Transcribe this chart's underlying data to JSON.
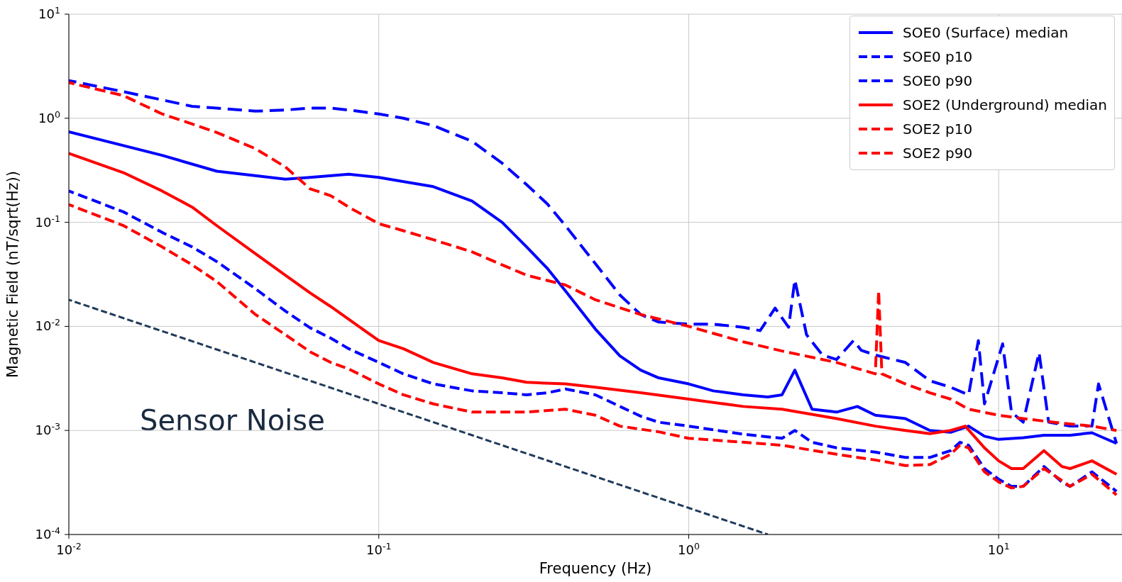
{
  "chart_data": {
    "type": "line",
    "xlabel": "Frequency (Hz)",
    "ylabel": "Magnetic Field (nT/sqrt(Hz))",
    "log": "xy",
    "grid": true,
    "legend": "top right",
    "marker": "none",
    "xlim": [
      0.01,
      25
    ],
    "ylim": [
      0.0001,
      10
    ],
    "xticks": [
      {
        "value": 0.01,
        "label": "10$^{-2}$"
      },
      {
        "value": 0.1,
        "label": "10$^{-1}$"
      },
      {
        "value": 1,
        "label": "10$^{0}$"
      },
      {
        "value": 10,
        "label": "10$^{1}$"
      }
    ],
    "yticks": [
      {
        "value": 0.0001,
        "label": "10$^{-4}$"
      },
      {
        "value": 0.001,
        "label": "10$^{-3}$"
      },
      {
        "value": 0.01,
        "label": "10$^{-2}$"
      },
      {
        "value": 0.1,
        "label": "10$^{-1}$"
      },
      {
        "value": 1,
        "label": "10$^{0}$"
      },
      {
        "value": 10,
        "label": "10$^{1}$"
      }
    ],
    "annotations": [
      "Sensor Noise"
    ],
    "series": [
      {
        "name": "SOE0 (Surface) median",
        "color": "#0000ff",
        "line_style": "solid",
        "x": [
          0.01,
          0.02,
          0.03,
          0.05,
          0.06,
          0.08,
          0.1,
          0.15,
          0.2,
          0.25,
          0.3,
          0.35,
          0.4,
          0.5,
          0.6,
          0.7,
          0.8,
          1,
          1.2,
          1.5,
          1.8,
          2,
          2.2,
          2.5,
          3,
          3.5,
          4,
          5,
          6,
          7,
          8,
          9,
          10,
          12,
          14,
          17,
          20,
          24
        ],
        "values": [
          0.74,
          0.44,
          0.31,
          0.26,
          0.27,
          0.29,
          0.27,
          0.22,
          0.16,
          0.1,
          0.058,
          0.036,
          0.022,
          0.0094,
          0.0052,
          0.0038,
          0.0032,
          0.0028,
          0.0024,
          0.0022,
          0.0021,
          0.0022,
          0.0038,
          0.0016,
          0.0015,
          0.0017,
          0.0014,
          0.0013,
          0.001,
          0.00096,
          0.0011,
          0.00088,
          0.00082,
          0.00085,
          0.0009,
          0.0009,
          0.00095,
          0.00075
        ]
      },
      {
        "name": "SOE0 p10",
        "color": "#0000ff",
        "line_style": "dashed",
        "x": [
          0.01,
          0.015,
          0.02,
          0.025,
          0.03,
          0.04,
          0.05,
          0.06,
          0.07,
          0.08,
          0.1,
          0.12,
          0.15,
          0.2,
          0.25,
          0.3,
          0.35,
          0.4,
          0.5,
          0.6,
          0.7,
          0.8,
          1,
          1.5,
          2,
          2.2,
          2.5,
          3,
          4,
          5,
          6,
          7,
          7.5,
          8,
          9,
          10,
          11,
          12,
          14,
          16,
          17,
          20,
          24
        ],
        "values": [
          0.2,
          0.126,
          0.08,
          0.058,
          0.042,
          0.023,
          0.014,
          0.0097,
          0.0077,
          0.0061,
          0.0045,
          0.0035,
          0.0028,
          0.0024,
          0.0023,
          0.0022,
          0.0023,
          0.0025,
          0.0022,
          0.0017,
          0.00137,
          0.0012,
          0.0011,
          0.00092,
          0.00084,
          0.001,
          0.00077,
          0.00068,
          0.00062,
          0.00055,
          0.00055,
          0.00064,
          0.00077,
          0.00072,
          0.00043,
          0.00034,
          0.00029,
          0.00029,
          0.00045,
          0.00032,
          0.00029,
          0.0004,
          0.00026
        ]
      },
      {
        "name": "SOE0 p90",
        "color": "#0000ff",
        "line_style": "dashed",
        "x": [
          0.01,
          0.015,
          0.02,
          0.025,
          0.03,
          0.04,
          0.05,
          0.06,
          0.07,
          0.08,
          0.1,
          0.12,
          0.15,
          0.2,
          0.25,
          0.3,
          0.35,
          0.4,
          0.5,
          0.6,
          0.7,
          0.8,
          1,
          1.2,
          1.5,
          1.7,
          1.9,
          2.1,
          2.2,
          2.4,
          2.7,
          3,
          3.4,
          3.6,
          4,
          5,
          6,
          7,
          8,
          8.6,
          9,
          10.3,
          11,
          12,
          13.5,
          14.5,
          17,
          20,
          21,
          24
        ],
        "values": [
          2.3,
          1.8,
          1.5,
          1.3,
          1.25,
          1.17,
          1.2,
          1.25,
          1.25,
          1.2,
          1.1,
          1,
          0.85,
          0.6,
          0.37,
          0.23,
          0.15,
          0.093,
          0.04,
          0.02,
          0.013,
          0.011,
          0.0105,
          0.0105,
          0.0098,
          0.0091,
          0.015,
          0.0098,
          0.028,
          0.0083,
          0.0053,
          0.0048,
          0.0073,
          0.0059,
          0.0053,
          0.0045,
          0.003,
          0.0026,
          0.0022,
          0.0073,
          0.0018,
          0.0068,
          0.0015,
          0.0012,
          0.0056,
          0.0012,
          0.0011,
          0.0011,
          0.0028,
          0.00075
        ]
      },
      {
        "name": "SOE2 (Underground) median",
        "color": "#ff0000",
        "line_style": "solid",
        "x": [
          0.01,
          0.015,
          0.02,
          0.025,
          0.03,
          0.04,
          0.05,
          0.06,
          0.07,
          0.08,
          0.1,
          0.12,
          0.15,
          0.2,
          0.25,
          0.3,
          0.4,
          0.5,
          0.7,
          1,
          1.5,
          2,
          3,
          4,
          5,
          6,
          7,
          7.8,
          9,
          10,
          11,
          12,
          14,
          16,
          17,
          20,
          24
        ],
        "values": [
          0.46,
          0.3,
          0.2,
          0.14,
          0.093,
          0.05,
          0.031,
          0.021,
          0.0155,
          0.0117,
          0.0073,
          0.0061,
          0.0045,
          0.0035,
          0.0032,
          0.0029,
          0.0028,
          0.0026,
          0.0023,
          0.002,
          0.0017,
          0.0016,
          0.0013,
          0.0011,
          0.001,
          0.00093,
          0.001,
          0.0011,
          0.00068,
          0.00051,
          0.00043,
          0.00043,
          0.00064,
          0.00045,
          0.00043,
          0.00051,
          0.00038
        ]
      },
      {
        "name": "SOE2 p10",
        "color": "#ff0000",
        "line_style": "dashed",
        "x": [
          0.01,
          0.015,
          0.02,
          0.025,
          0.03,
          0.04,
          0.05,
          0.06,
          0.07,
          0.08,
          0.1,
          0.12,
          0.15,
          0.2,
          0.25,
          0.3,
          0.4,
          0.5,
          0.6,
          0.8,
          1,
          1.5,
          2,
          3,
          4,
          5,
          6,
          7,
          7.5,
          8,
          9,
          10,
          11,
          12,
          14,
          16,
          17,
          20,
          24
        ],
        "values": [
          0.148,
          0.093,
          0.058,
          0.039,
          0.027,
          0.013,
          0.0083,
          0.0057,
          0.0045,
          0.0039,
          0.0028,
          0.0022,
          0.0018,
          0.0015,
          0.0015,
          0.0015,
          0.0016,
          0.0014,
          0.0011,
          0.00097,
          0.00084,
          0.00077,
          0.00072,
          0.00059,
          0.00052,
          0.00046,
          0.00047,
          0.00059,
          0.00072,
          0.00068,
          0.0004,
          0.00032,
          0.00028,
          0.00029,
          0.00043,
          0.00033,
          0.00029,
          0.00038,
          0.00024
        ]
      },
      {
        "name": "SOE2 p90",
        "color": "#ff0000",
        "line_style": "dashed",
        "x": [
          0.01,
          0.015,
          0.02,
          0.025,
          0.03,
          0.04,
          0.05,
          0.06,
          0.07,
          0.08,
          0.1,
          0.12,
          0.15,
          0.2,
          0.25,
          0.3,
          0.4,
          0.5,
          0.7,
          1,
          1.5,
          2,
          3,
          4,
          4.1,
          4.2,
          5,
          6,
          7,
          8,
          10,
          12,
          15,
          20,
          24
        ],
        "values": [
          2.2,
          1.65,
          1.1,
          0.88,
          0.73,
          0.51,
          0.34,
          0.21,
          0.18,
          0.14,
          0.097,
          0.083,
          0.068,
          0.052,
          0.039,
          0.031,
          0.025,
          0.018,
          0.013,
          0.01,
          0.0071,
          0.0058,
          0.0045,
          0.0035,
          0.022,
          0.0035,
          0.0028,
          0.0023,
          0.002,
          0.0016,
          0.0014,
          0.0013,
          0.0012,
          0.0011,
          0.001
        ]
      },
      {
        "color": "#1f3a5a",
        "line_style": "dashed",
        "x": [
          0.01,
          1.8
        ],
        "values": [
          0.018,
          0.0001
        ]
      }
    ]
  }
}
